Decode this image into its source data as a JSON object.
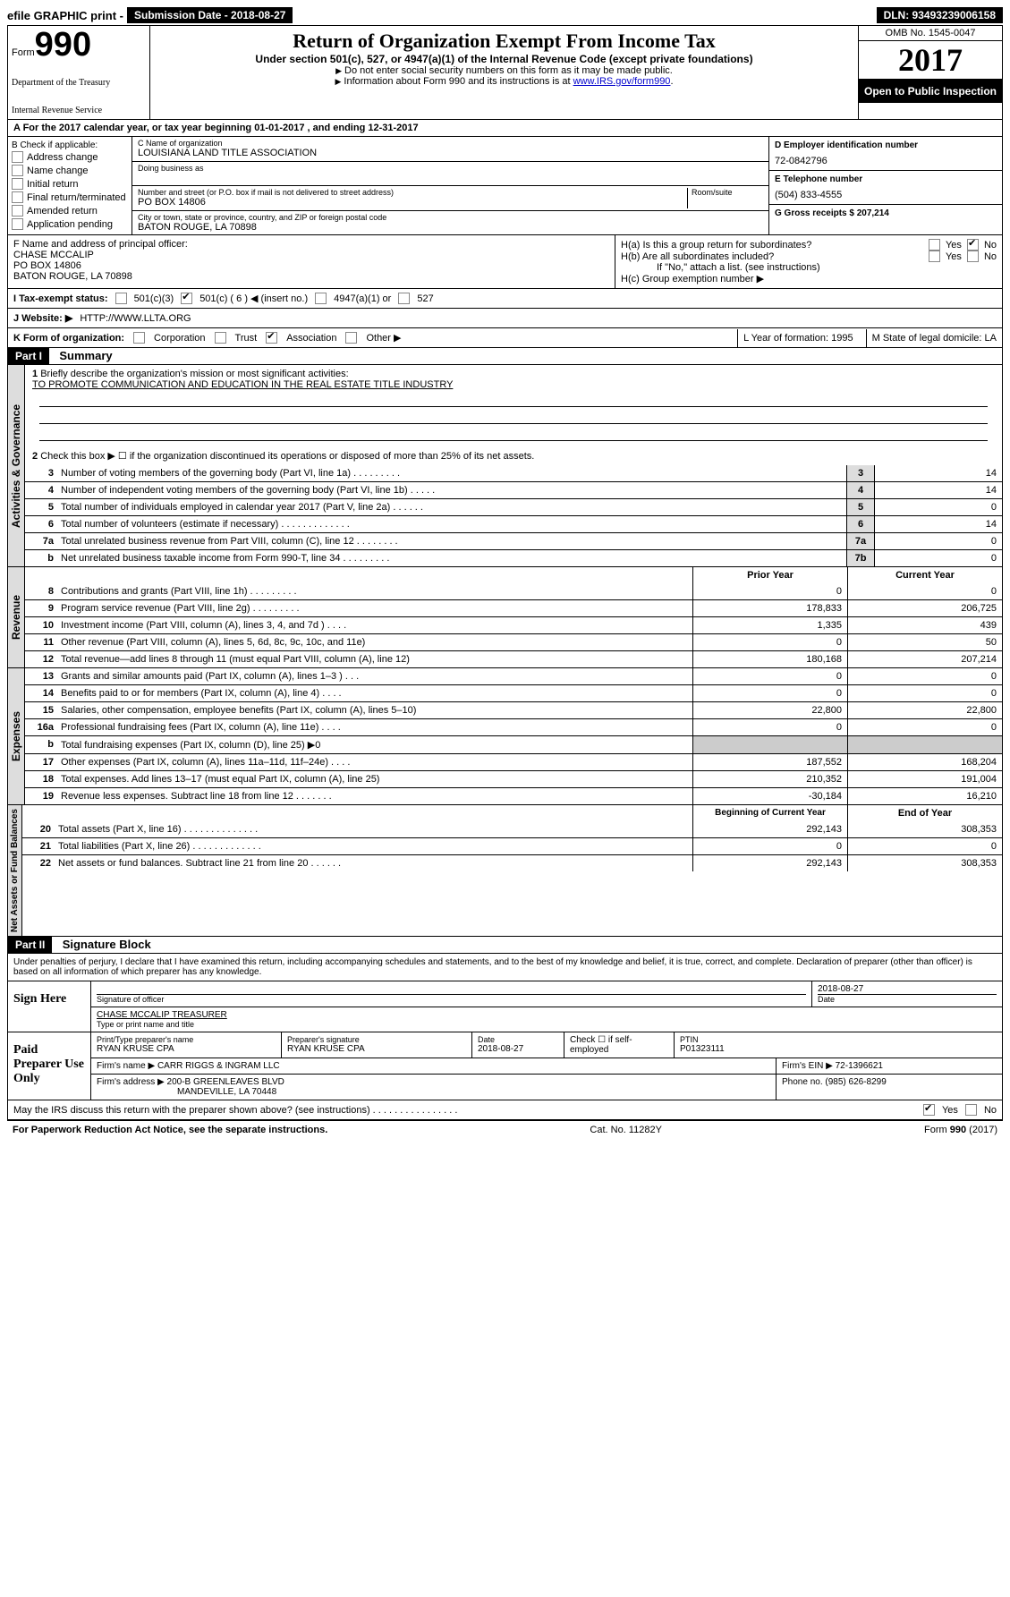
{
  "topbar": {
    "efile": "efile GRAPHIC print -",
    "submission_label": "Submission Date - 2018-08-27",
    "dln": "DLN: 93493239006158"
  },
  "header": {
    "form_word": "Form",
    "form_num": "990",
    "dept1": "Department of the Treasury",
    "dept2": "Internal Revenue Service",
    "title": "Return of Organization Exempt From Income Tax",
    "subtitle": "Under section 501(c), 527, or 4947(a)(1) of the Internal Revenue Code (except private foundations)",
    "note1": "Do not enter social security numbers on this form as it may be made public.",
    "note2_pre": "Information about Form 990 and its instructions is at ",
    "note2_link": "www.IRS.gov/form990",
    "omb": "OMB No. 1545-0047",
    "year": "2017",
    "open_public": "Open to Public Inspection"
  },
  "rowA": "A  For the 2017 calendar year, or tax year beginning 01-01-2017   , and ending 12-31-2017",
  "colB": {
    "label": "B Check if applicable:",
    "opts": [
      "Address change",
      "Name change",
      "Initial return",
      "Final return/terminated",
      "Amended return",
      "Application pending"
    ]
  },
  "colC": {
    "name_label": "C Name of organization",
    "name": "LOUISIANA LAND TITLE ASSOCIATION",
    "dba_label": "Doing business as",
    "street_label": "Number and street (or P.O. box if mail is not delivered to street address)",
    "room_label": "Room/suite",
    "street": "PO BOX 14806",
    "city_label": "City or town, state or province, country, and ZIP or foreign postal code",
    "city": "BATON ROUGE, LA  70898"
  },
  "colD": {
    "d_label": "D Employer identification number",
    "ein": "72-0842796",
    "e_label": "E Telephone number",
    "phone": "(504) 833-4555",
    "g_label": "G Gross receipts $ 207,214"
  },
  "colF": {
    "label": "F  Name and address of principal officer:",
    "l1": "CHASE MCCALIP",
    "l2": "PO BOX 14806",
    "l3": "BATON ROUGE, LA  70898"
  },
  "colH": {
    "a_label": "H(a)  Is this a group return for subordinates?",
    "b_label": "H(b)  Are all subordinates included?",
    "note": "If \"No,\" attach a list. (see instructions)",
    "c_label": "H(c)  Group exemption number ▶",
    "yes": "Yes",
    "no": "No"
  },
  "rowI": {
    "label": "I  Tax-exempt status:",
    "o1": "501(c)(3)",
    "o2": "501(c) ( 6 ) ◀ (insert no.)",
    "o3": "4947(a)(1) or",
    "o4": "527"
  },
  "rowJ": {
    "label": "J  Website: ▶",
    "val": "HTTP://WWW.LLTA.ORG"
  },
  "rowK": {
    "label": "K Form of organization:",
    "o1": "Corporation",
    "o2": "Trust",
    "o3": "Association",
    "o4": "Other ▶",
    "l_label": "L Year of formation: 1995",
    "m_label": "M State of legal domicile: LA"
  },
  "part1": {
    "header": "Part I",
    "title": "Summary",
    "gov_label": "Activities & Governance",
    "rev_label": "Revenue",
    "exp_label": "Expenses",
    "net_label": "Net Assets or Fund Balances",
    "line1": "Briefly describe the organization's mission or most significant activities:",
    "mission": "TO PROMOTE COMMUNICATION AND EDUCATION IN THE REAL ESTATE TITLE INDUSTRY",
    "line2": "Check this box ▶ ☐  if the organization discontinued its operations or disposed of more than 25% of its net assets.",
    "rows_gov": [
      {
        "n": "3",
        "d": "Number of voting members of the governing body (Part VI, line 1a)    .    .    .    .    .    .    .    .    .",
        "b": "3",
        "v": "14"
      },
      {
        "n": "4",
        "d": "Number of independent voting members of the governing body (Part VI, line 1b)    .    .    .    .    .",
        "b": "4",
        "v": "14"
      },
      {
        "n": "5",
        "d": "Total number of individuals employed in calendar year 2017 (Part V, line 2a)    .    .    .    .    .    .",
        "b": "5",
        "v": "0"
      },
      {
        "n": "6",
        "d": "Total number of volunteers (estimate if necessary)    .    .    .    .    .    .    .    .    .    .    .    .    .",
        "b": "6",
        "v": "14"
      },
      {
        "n": "7a",
        "d": "Total unrelated business revenue from Part VIII, column (C), line 12    .    .    .    .    .    .    .    .",
        "b": "7a",
        "v": "0"
      },
      {
        "n": "b",
        "d": "Net unrelated business taxable income from Form 990-T, line 34    .    .    .    .    .    .    .    .    .",
        "b": "7b",
        "v": "0"
      }
    ],
    "prior_hdr": "Prior Year",
    "curr_hdr": "Current Year",
    "rows_rev": [
      {
        "n": "8",
        "d": "Contributions and grants (Part VIII, line 1h)    .    .    .    .    .    .    .    .    .",
        "p": "0",
        "c": "0"
      },
      {
        "n": "9",
        "d": "Program service revenue (Part VIII, line 2g)    .    .    .    .    .    .    .    .    .",
        "p": "178,833",
        "c": "206,725"
      },
      {
        "n": "10",
        "d": "Investment income (Part VIII, column (A), lines 3, 4, and 7d )    .    .    .    .",
        "p": "1,335",
        "c": "439"
      },
      {
        "n": "11",
        "d": "Other revenue (Part VIII, column (A), lines 5, 6d, 8c, 9c, 10c, and 11e)",
        "p": "0",
        "c": "50"
      },
      {
        "n": "12",
        "d": "Total revenue—add lines 8 through 11 (must equal Part VIII, column (A), line 12)",
        "p": "180,168",
        "c": "207,214"
      }
    ],
    "rows_exp": [
      {
        "n": "13",
        "d": "Grants and similar amounts paid (Part IX, column (A), lines 1–3 )    .    .    .",
        "p": "0",
        "c": "0"
      },
      {
        "n": "14",
        "d": "Benefits paid to or for members (Part IX, column (A), line 4)    .    .    .    .",
        "p": "0",
        "c": "0"
      },
      {
        "n": "15",
        "d": "Salaries, other compensation, employee benefits (Part IX, column (A), lines 5–10)",
        "p": "22,800",
        "c": "22,800"
      },
      {
        "n": "16a",
        "d": "Professional fundraising fees (Part IX, column (A), line 11e)    .    .    .    .",
        "p": "0",
        "c": "0"
      },
      {
        "n": "b",
        "d": "Total fundraising expenses (Part IX, column (D), line 25) ▶0",
        "p": "shaded",
        "c": "shaded"
      },
      {
        "n": "17",
        "d": "Other expenses (Part IX, column (A), lines 11a–11d, 11f–24e)    .    .    .    .",
        "p": "187,552",
        "c": "168,204"
      },
      {
        "n": "18",
        "d": "Total expenses. Add lines 13–17 (must equal Part IX, column (A), line 25)",
        "p": "210,352",
        "c": "191,004"
      },
      {
        "n": "19",
        "d": "Revenue less expenses. Subtract line 18 from line 12    .    .    .    .    .    .    .",
        "p": "-30,184",
        "c": "16,210"
      }
    ],
    "beg_hdr": "Beginning of Current Year",
    "end_hdr": "End of Year",
    "rows_net": [
      {
        "n": "20",
        "d": "Total assets (Part X, line 16)    .    .    .    .    .    .    .    .    .    .    .    .    .    .",
        "p": "292,143",
        "c": "308,353"
      },
      {
        "n": "21",
        "d": "Total liabilities (Part X, line 26)    .    .    .    .    .    .    .    .    .    .    .    .    .",
        "p": "0",
        "c": "0"
      },
      {
        "n": "22",
        "d": "Net assets or fund balances. Subtract line 21 from line 20    .    .    .    .    .    .",
        "p": "292,143",
        "c": "308,353"
      }
    ]
  },
  "part2": {
    "header": "Part II",
    "title": "Signature Block",
    "declaration": "Under penalties of perjury, I declare that I have examined this return, including accompanying schedules and statements, and to the best of my knowledge and belief, it is true, correct, and complete. Declaration of preparer (other than officer) is based on all information of which preparer has any knowledge.",
    "sign_here": "Sign Here",
    "sig_officer_label": "Signature of officer",
    "sig_date": "2018-08-27",
    "date_label": "Date",
    "officer_name": "CHASE MCCALIP  TREASURER",
    "type_name_label": "Type or print name and title",
    "paid_prep": "Paid Preparer Use Only",
    "prep_name_label": "Print/Type preparer's name",
    "prep_name": "RYAN KRUSE CPA",
    "prep_sig_label": "Preparer's signature",
    "prep_sig": "RYAN KRUSE CPA",
    "prep_date_label": "Date",
    "prep_date": "2018-08-27",
    "check_self": "Check ☐ if self-employed",
    "ptin_label": "PTIN",
    "ptin": "P01323111",
    "firm_name_label": "Firm's name    ▶",
    "firm_name": "CARR RIGGS & INGRAM LLC",
    "firm_ein_label": "Firm's EIN ▶",
    "firm_ein": "72-1396621",
    "firm_addr_label": "Firm's address ▶",
    "firm_addr1": "200-B GREENLEAVES BLVD",
    "firm_addr2": "MANDEVILLE, LA  70448",
    "firm_phone_label": "Phone no.",
    "firm_phone": "(985) 626-8299",
    "discuss": "May the IRS discuss this return with the preparer shown above? (see instructions)    .    .    .    .    .    .    .    .    .    .    .    .    .    .    .    .",
    "yes": "Yes",
    "no": "No"
  },
  "footer": {
    "left": "For Paperwork Reduction Act Notice, see the separate instructions.",
    "center": "Cat. No. 11282Y",
    "right": "Form 990 (2017)"
  }
}
